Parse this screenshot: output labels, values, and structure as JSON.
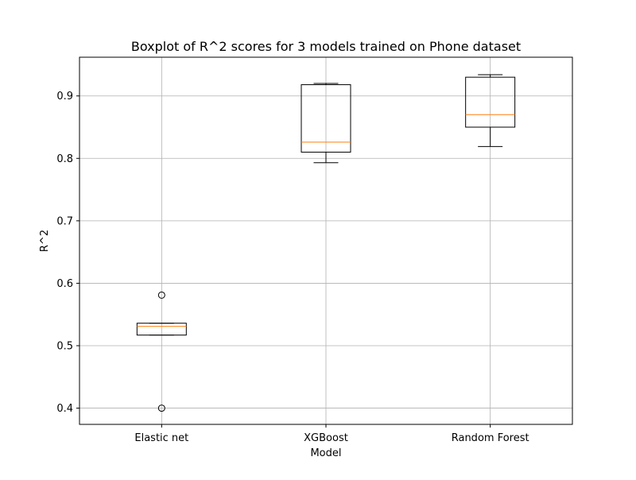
{
  "chart_data": {
    "type": "box",
    "title": "Boxplot of R^2 scores for 3 models trained on Phone dataset",
    "xlabel": "Model",
    "ylabel": "R^2",
    "ylim": [
      0.374,
      0.962
    ],
    "yticks": [
      0.4,
      0.5,
      0.6,
      0.7,
      0.8,
      0.9
    ],
    "grid": true,
    "categories": [
      "Elastic net",
      "XGBoost",
      "Random Forest"
    ],
    "boxes": [
      {
        "category": "Elastic net",
        "whisker_low": 0.517,
        "q1": 0.517,
        "median": 0.531,
        "q3": 0.536,
        "whisker_high": 0.536,
        "outliers": [
          0.581,
          0.4
        ]
      },
      {
        "category": "XGBoost",
        "whisker_low": 0.793,
        "q1": 0.81,
        "median": 0.826,
        "q3": 0.918,
        "whisker_high": 0.92,
        "outliers": []
      },
      {
        "category": "Random Forest",
        "whisker_low": 0.819,
        "q1": 0.85,
        "median": 0.87,
        "q3": 0.93,
        "whisker_high": 0.934,
        "outliers": []
      }
    ],
    "colors": {
      "box": "#000000",
      "median": "#ff7f0e",
      "grid": "#b0b0b0"
    }
  }
}
